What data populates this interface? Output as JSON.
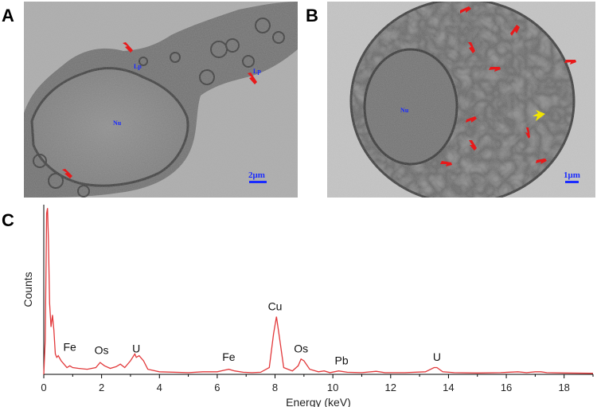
{
  "panels": {
    "a": {
      "letter": "A",
      "labels": {
        "nucleus": "Nu",
        "lipid1": "Lp",
        "lipid2": "Lp"
      },
      "scale_text": "2μm"
    },
    "b": {
      "letter": "B",
      "labels": {
        "nucleus": "Nu"
      },
      "scale_text": "1μm"
    },
    "c": {
      "letter": "C"
    }
  },
  "colors": {
    "arrow": "#e8191a",
    "arrow_highlight": "#f2e500",
    "label": "#1a2bff",
    "spectrum_line": "#e2383a"
  },
  "chart_data": {
    "type": "line",
    "xlabel": "Energy (keV)",
    "ylabel": "Counts",
    "xlim": [
      0,
      19
    ],
    "ylim": [
      0,
      100
    ],
    "xticks": [
      0,
      2,
      4,
      6,
      8,
      10,
      12,
      14,
      16,
      18
    ],
    "grid": false,
    "series": [
      {
        "x": [
          0.0,
          0.05,
          0.1,
          0.13,
          0.16,
          0.2,
          0.25,
          0.3,
          0.35,
          0.4,
          0.45,
          0.5,
          0.6,
          0.7,
          0.8,
          0.9,
          1.0,
          1.2,
          1.5,
          1.8,
          1.95,
          2.1,
          2.3,
          2.5,
          2.65,
          2.8,
          3.0,
          3.15,
          3.2,
          3.3,
          3.45,
          3.6,
          4.0,
          5.0,
          5.5,
          6.0,
          6.25,
          6.4,
          6.6,
          6.9,
          7.2,
          7.5,
          7.8,
          7.95,
          8.05,
          8.15,
          8.3,
          8.6,
          8.8,
          8.9,
          9.0,
          9.2,
          9.5,
          9.7,
          9.9,
          10.2,
          10.5,
          11.0,
          11.5,
          11.8,
          12.5,
          13.2,
          13.5,
          13.6,
          13.8,
          14.2,
          15.0,
          15.8,
          16.4,
          16.7,
          17.0,
          17.2,
          17.4,
          18.0,
          19.0
        ],
        "y": [
          0,
          20,
          95,
          98,
          80,
          42,
          28,
          35,
          26,
          12,
          10,
          11,
          8,
          6,
          4,
          5,
          4,
          3.5,
          3,
          4,
          7,
          5,
          3.5,
          4.5,
          6,
          4,
          8,
          12,
          10,
          11,
          8,
          3,
          1.5,
          1,
          1.5,
          1.5,
          2.5,
          3,
          2,
          1.2,
          1,
          1.2,
          4,
          24,
          34,
          22,
          4,
          2,
          5,
          9,
          8,
          3,
          1.5,
          2,
          1,
          2,
          1.2,
          1,
          1.8,
          1,
          1,
          1.5,
          4,
          4,
          1.5,
          1,
          0.8,
          1,
          1.5,
          1,
          1.5,
          1.5,
          1,
          0.8,
          0.6
        ]
      }
    ],
    "annotations": [
      {
        "text": "Fe",
        "x": 0.9,
        "y": 12
      },
      {
        "text": "Os",
        "x": 2.0,
        "y": 10
      },
      {
        "text": "U",
        "x": 3.2,
        "y": 11
      },
      {
        "text": "Fe",
        "x": 6.4,
        "y": 6
      },
      {
        "text": "Cu",
        "x": 8.0,
        "y": 36
      },
      {
        "text": "Os",
        "x": 8.9,
        "y": 11
      },
      {
        "text": "Pb",
        "x": 10.3,
        "y": 4
      },
      {
        "text": "U",
        "x": 13.6,
        "y": 6
      }
    ]
  }
}
